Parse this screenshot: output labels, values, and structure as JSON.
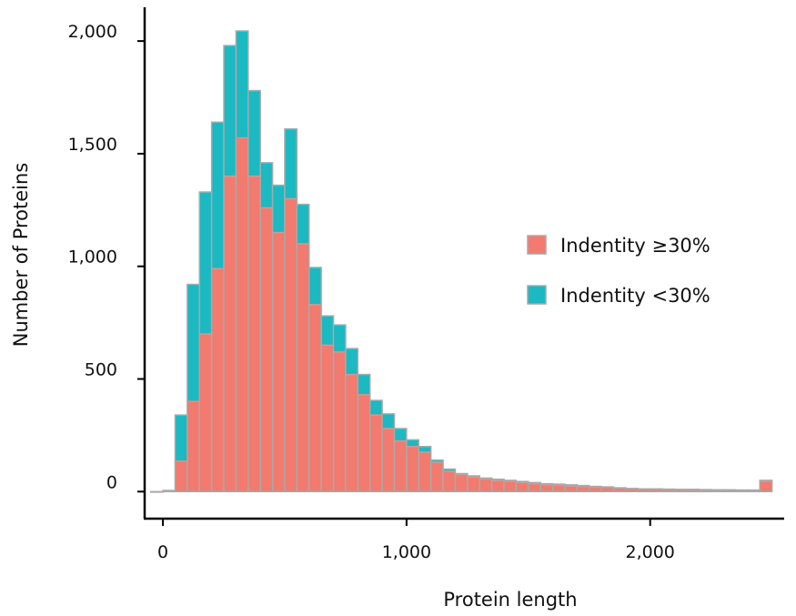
{
  "chart_data": {
    "type": "bar",
    "stacked": true,
    "xlabel": "Protein length",
    "ylabel": "Number of Proteins",
    "xlim": [
      -75,
      2550
    ],
    "ylim": [
      -120,
      2150
    ],
    "x_ticks": [
      {
        "value": 0,
        "label": "0"
      },
      {
        "value": 1000,
        "label": "1,000"
      },
      {
        "value": 2000,
        "label": "2,000"
      }
    ],
    "y_ticks": [
      {
        "value": 0,
        "label": "0"
      },
      {
        "value": 500,
        "label": "500"
      },
      {
        "value": 1000,
        "label": "1,000"
      },
      {
        "value": 1500,
        "label": "1,500"
      },
      {
        "value": 2000,
        "label": "2,000"
      }
    ],
    "bin_width": 50,
    "bin_start": [
      -50,
      0,
      50,
      100,
      150,
      200,
      250,
      300,
      350,
      400,
      450,
      500,
      550,
      600,
      650,
      700,
      750,
      800,
      850,
      900,
      950,
      1000,
      1050,
      1100,
      1150,
      1200,
      1250,
      1300,
      1350,
      1400,
      1450,
      1500,
      1550,
      1600,
      1650,
      1700,
      1750,
      1800,
      1850,
      1900,
      1950,
      2000,
      2050,
      2100,
      2150,
      2200,
      2250,
      2300,
      2350,
      2400,
      2450
    ],
    "series": [
      {
        "name": "Indentity ≥30%",
        "color": "#f27a6e",
        "values": [
          0,
          5,
          135,
          400,
          700,
          990,
          1400,
          1570,
          1400,
          1260,
          1150,
          1300,
          1100,
          830,
          650,
          620,
          520,
          430,
          340,
          280,
          225,
          200,
          175,
          130,
          90,
          75,
          65,
          55,
          50,
          45,
          40,
          35,
          30,
          28,
          25,
          22,
          20,
          18,
          14,
          12,
          10,
          10,
          9,
          8,
          8,
          7,
          6,
          6,
          5,
          5,
          45
        ]
      },
      {
        "name": "Indentity <30%",
        "color": "#1bb9c2",
        "values": [
          0,
          0,
          205,
          520,
          630,
          650,
          580,
          475,
          380,
          200,
          210,
          310,
          175,
          165,
          130,
          120,
          115,
          90,
          65,
          65,
          55,
          30,
          25,
          10,
          10,
          5,
          5,
          5,
          5,
          5,
          5,
          5,
          5,
          5,
          5,
          5,
          3,
          3,
          3,
          2,
          2,
          2,
          2,
          2,
          2,
          2,
          2,
          2,
          2,
          2,
          5
        ]
      }
    ],
    "legend": {
      "position": "center-right",
      "entries": [
        "Indentity ≥30%",
        "Indentity <30%"
      ]
    },
    "bar_outline_color": "#a9a9a9",
    "grid": false
  }
}
